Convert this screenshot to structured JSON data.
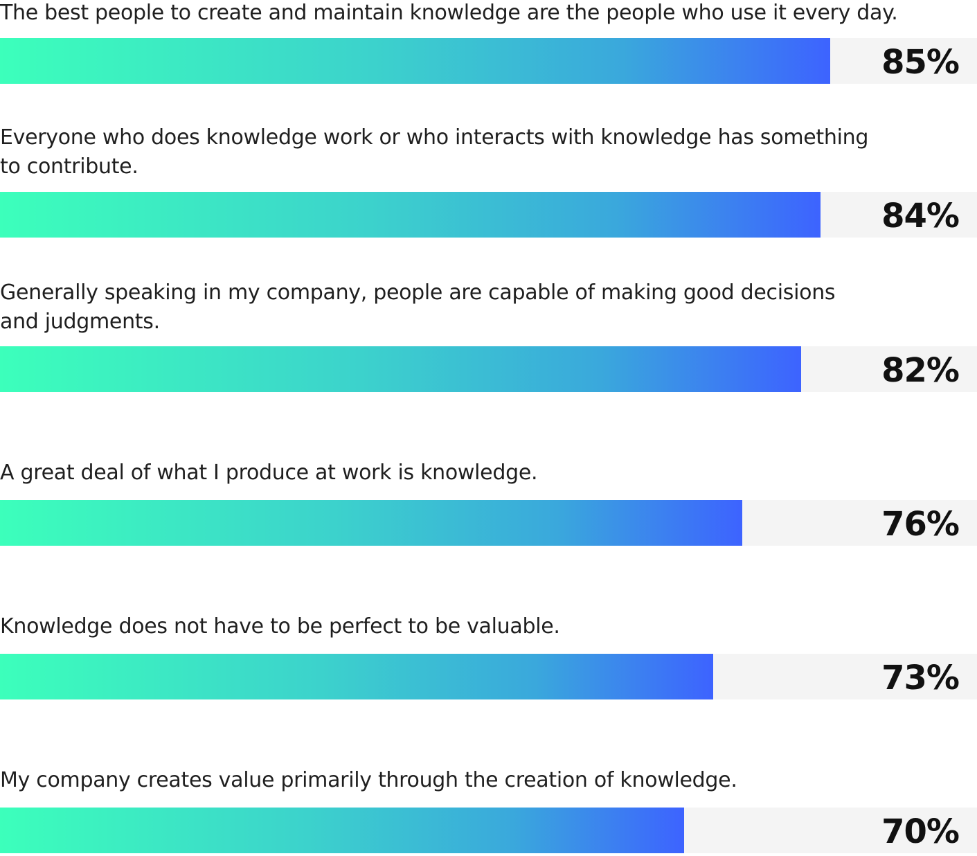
{
  "chart_data": {
    "type": "bar",
    "orientation": "horizontal",
    "ylim": [
      0,
      100
    ],
    "gradient_colors": [
      "#3cffbb",
      "#3d63ff"
    ],
    "track_color": "#f4f4f4",
    "categories": [
      "The best people to create and maintain knowledge are the people who use it every day.",
      "Everyone who does knowledge work or who interacts with knowledge has something to contribute.",
      "Generally speaking in my company, people are capable of making good decisions and judgments.",
      "A great deal of what I produce at work is knowledge.",
      "Knowledge does not have to be perfect to be valuable.",
      "My company creates value primarily through the creation of knowledge."
    ],
    "values": [
      85,
      84,
      82,
      76,
      73,
      70
    ],
    "value_labels": [
      "85%",
      "84%",
      "82%",
      "76%",
      "73%",
      "70%"
    ]
  }
}
